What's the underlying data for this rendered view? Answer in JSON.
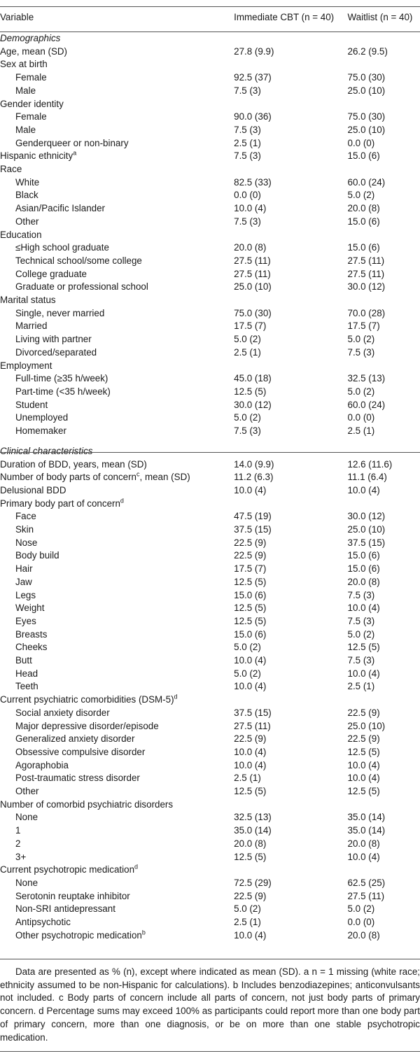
{
  "header": {
    "col1": "Variable",
    "col2": "Immediate CBT (n = 40)",
    "col3": "Waitlist (n = 40)"
  },
  "demographics": {
    "title": "Demographics",
    "rows": [
      {
        "label": "Age, mean (SD)",
        "a": "27.8 (9.9)",
        "b": "26.2 (9.5)",
        "indent": false
      },
      {
        "label": "Sex at birth",
        "a": "",
        "b": "",
        "indent": false
      },
      {
        "label": "Female",
        "a": "92.5 (37)",
        "b": "75.0 (30)",
        "indent": true
      },
      {
        "label": "Male",
        "a": "7.5 (3)",
        "b": "25.0 (10)",
        "indent": true
      },
      {
        "label": "Gender identity",
        "a": "",
        "b": "",
        "indent": false
      },
      {
        "label": "Female",
        "a": "90.0 (36)",
        "b": "75.0 (30)",
        "indent": true
      },
      {
        "label": "Male",
        "a": "7.5 (3)",
        "b": "25.0 (10)",
        "indent": true
      },
      {
        "label": "Genderqueer or non-binary",
        "a": "2.5 (1)",
        "b": "0.0 (0)",
        "indent": true
      },
      {
        "label": "Hispanic ethnicity",
        "sup": "a",
        "a": "7.5 (3)",
        "b": "15.0 (6)",
        "indent": false
      },
      {
        "label": "Race",
        "a": "",
        "b": "",
        "indent": false
      },
      {
        "label": "White",
        "a": "82.5 (33)",
        "b": "60.0 (24)",
        "indent": true
      },
      {
        "label": "Black",
        "a": "0.0 (0)",
        "b": "5.0 (2)",
        "indent": true
      },
      {
        "label": "Asian/Pacific Islander",
        "a": "10.0 (4)",
        "b": "20.0 (8)",
        "indent": true
      },
      {
        "label": "Other",
        "a": "7.5 (3)",
        "b": "15.0 (6)",
        "indent": true
      },
      {
        "label": "Education",
        "a": "",
        "b": "",
        "indent": false
      },
      {
        "label": "≤High school graduate",
        "a": "20.0 (8)",
        "b": "15.0 (6)",
        "indent": true
      },
      {
        "label": "Technical school/some college",
        "a": "27.5 (11)",
        "b": "27.5 (11)",
        "indent": true
      },
      {
        "label": "College graduate",
        "a": "27.5 (11)",
        "b": "27.5 (11)",
        "indent": true
      },
      {
        "label": "Graduate or professional school",
        "a": "25.0 (10)",
        "b": "30.0 (12)",
        "indent": true
      },
      {
        "label": "Marital status",
        "a": "",
        "b": "",
        "indent": false
      },
      {
        "label": "Single, never married",
        "a": "75.0 (30)",
        "b": "70.0 (28)",
        "indent": true
      },
      {
        "label": "Married",
        "a": "17.5 (7)",
        "b": "17.5 (7)",
        "indent": true
      },
      {
        "label": "Living with partner",
        "a": "5.0 (2)",
        "b": "5.0 (2)",
        "indent": true
      },
      {
        "label": "Divorced/separated",
        "a": "2.5 (1)",
        "b": "7.5 (3)",
        "indent": true
      },
      {
        "label": "Employment",
        "a": "",
        "b": "",
        "indent": false
      },
      {
        "label": "Full-time (≥35 h/week)",
        "a": "45.0 (18)",
        "b": "32.5 (13)",
        "indent": true
      },
      {
        "label": "Part-time (<35 h/week)",
        "a": "12.5 (5)",
        "b": "5.0 (2)",
        "indent": true
      },
      {
        "label": "Student",
        "a": "30.0 (12)",
        "b": "60.0 (24)",
        "indent": true
      },
      {
        "label": "Unemployed",
        "a": "5.0 (2)",
        "b": "0.0 (0)",
        "indent": true
      },
      {
        "label": "Homemaker",
        "a": "7.5 (3)",
        "b": "2.5 (1)",
        "indent": true
      }
    ]
  },
  "clinical": {
    "title": "Clinical characteristics",
    "rows": [
      {
        "label": "Duration of BDD, years, mean (SD)",
        "a": "14.0 (9.9)",
        "b": "12.6 (11.6)",
        "indent": false
      },
      {
        "label": "Number of body parts of concern",
        "sup": "c",
        "label2": ", mean (SD)",
        "a": "11.2 (6.3)",
        "b": "11.1 (6.4)",
        "indent": false
      },
      {
        "label": "Delusional BDD",
        "a": "10.0 (4)",
        "b": "10.0 (4)",
        "indent": false
      },
      {
        "label": "Primary body part of concern",
        "sup": "d",
        "a": "",
        "b": "",
        "indent": false
      },
      {
        "label": "Face",
        "a": "47.5 (19)",
        "b": "30.0 (12)",
        "indent": true
      },
      {
        "label": "Skin",
        "a": "37.5 (15)",
        "b": "25.0 (10)",
        "indent": true
      },
      {
        "label": "Nose",
        "a": "22.5 (9)",
        "b": "37.5 (15)",
        "indent": true
      },
      {
        "label": "Body build",
        "a": "22.5 (9)",
        "b": "15.0 (6)",
        "indent": true
      },
      {
        "label": "Hair",
        "a": "17.5 (7)",
        "b": "15.0 (6)",
        "indent": true
      },
      {
        "label": "Jaw",
        "a": "12.5 (5)",
        "b": "20.0 (8)",
        "indent": true
      },
      {
        "label": "Legs",
        "a": "15.0 (6)",
        "b": "7.5 (3)",
        "indent": true
      },
      {
        "label": "Weight",
        "a": "12.5 (5)",
        "b": "10.0 (4)",
        "indent": true
      },
      {
        "label": "Eyes",
        "a": "12.5 (5)",
        "b": "7.5 (3)",
        "indent": true
      },
      {
        "label": "Breasts",
        "a": "15.0 (6)",
        "b": "5.0 (2)",
        "indent": true
      },
      {
        "label": "Cheeks",
        "a": "5.0 (2)",
        "b": "12.5 (5)",
        "indent": true
      },
      {
        "label": "Butt",
        "a": "10.0 (4)",
        "b": "7.5 (3)",
        "indent": true
      },
      {
        "label": "Head",
        "a": "5.0 (2)",
        "b": "10.0 (4)",
        "indent": true
      },
      {
        "label": "Teeth",
        "a": "10.0 (4)",
        "b": "2.5 (1)",
        "indent": true
      },
      {
        "label": "Current psychiatric comorbidities (DSM-5)",
        "sup": "d",
        "a": "",
        "b": "",
        "indent": false
      },
      {
        "label": "Social anxiety disorder",
        "a": "37.5 (15)",
        "b": "22.5 (9)",
        "indent": true
      },
      {
        "label": "Major depressive disorder/episode",
        "a": "27.5 (11)",
        "b": "25.0 (10)",
        "indent": true
      },
      {
        "label": "Generalized anxiety disorder",
        "a": "22.5 (9)",
        "b": "22.5 (9)",
        "indent": true
      },
      {
        "label": "Obsessive compulsive disorder",
        "a": "10.0 (4)",
        "b": "12.5 (5)",
        "indent": true
      },
      {
        "label": "Agoraphobia",
        "a": "10.0 (4)",
        "b": "10.0 (4)",
        "indent": true
      },
      {
        "label": "Post-traumatic stress disorder",
        "a": "2.5 (1)",
        "b": "10.0 (4)",
        "indent": true
      },
      {
        "label": "Other",
        "a": "12.5 (5)",
        "b": "12.5 (5)",
        "indent": true
      },
      {
        "label": "Number of comorbid psychiatric disorders",
        "a": "",
        "b": "",
        "indent": false
      },
      {
        "label": "None",
        "a": "32.5 (13)",
        "b": "35.0 (14)",
        "indent": true
      },
      {
        "label": "1",
        "a": "35.0 (14)",
        "b": "35.0 (14)",
        "indent": true
      },
      {
        "label": "2",
        "a": "20.0 (8)",
        "b": "20.0 (8)",
        "indent": true
      },
      {
        "label": "3+",
        "a": "12.5 (5)",
        "b": "10.0 (4)",
        "indent": true
      },
      {
        "label": "Current psychotropic medication",
        "sup": "d",
        "a": "",
        "b": "",
        "indent": false
      },
      {
        "label": "None",
        "a": "72.5 (29)",
        "b": "62.5 (25)",
        "indent": true
      },
      {
        "label": "Serotonin reuptake inhibitor",
        "a": "22.5 (9)",
        "b": "27.5 (11)",
        "indent": true
      },
      {
        "label": "Non-SRI antidepressant",
        "a": "5.0 (2)",
        "b": "5.0 (2)",
        "indent": true
      },
      {
        "label": "Antipsychotic",
        "a": "2.5 (1)",
        "b": "0.0 (0)",
        "indent": true
      },
      {
        "label": "Other psychotropic medication",
        "sup": "b",
        "a": "10.0 (4)",
        "b": "20.0 (8)",
        "indent": true
      }
    ]
  },
  "footnote": "Data are presented as % (n), except where indicated as mean (SD). a n = 1 missing (white race; ethnicity assumed to be non-Hispanic for calculations). b Includes benzodiazepines; anticonvulsants not included. c Body parts of concern include all parts of concern, not just body parts of primary concern. d Percentage sums may exceed 100% as participants could report more than one body part of primary concern, more than one diagnosis, or be on more than one stable psychotropic medication."
}
